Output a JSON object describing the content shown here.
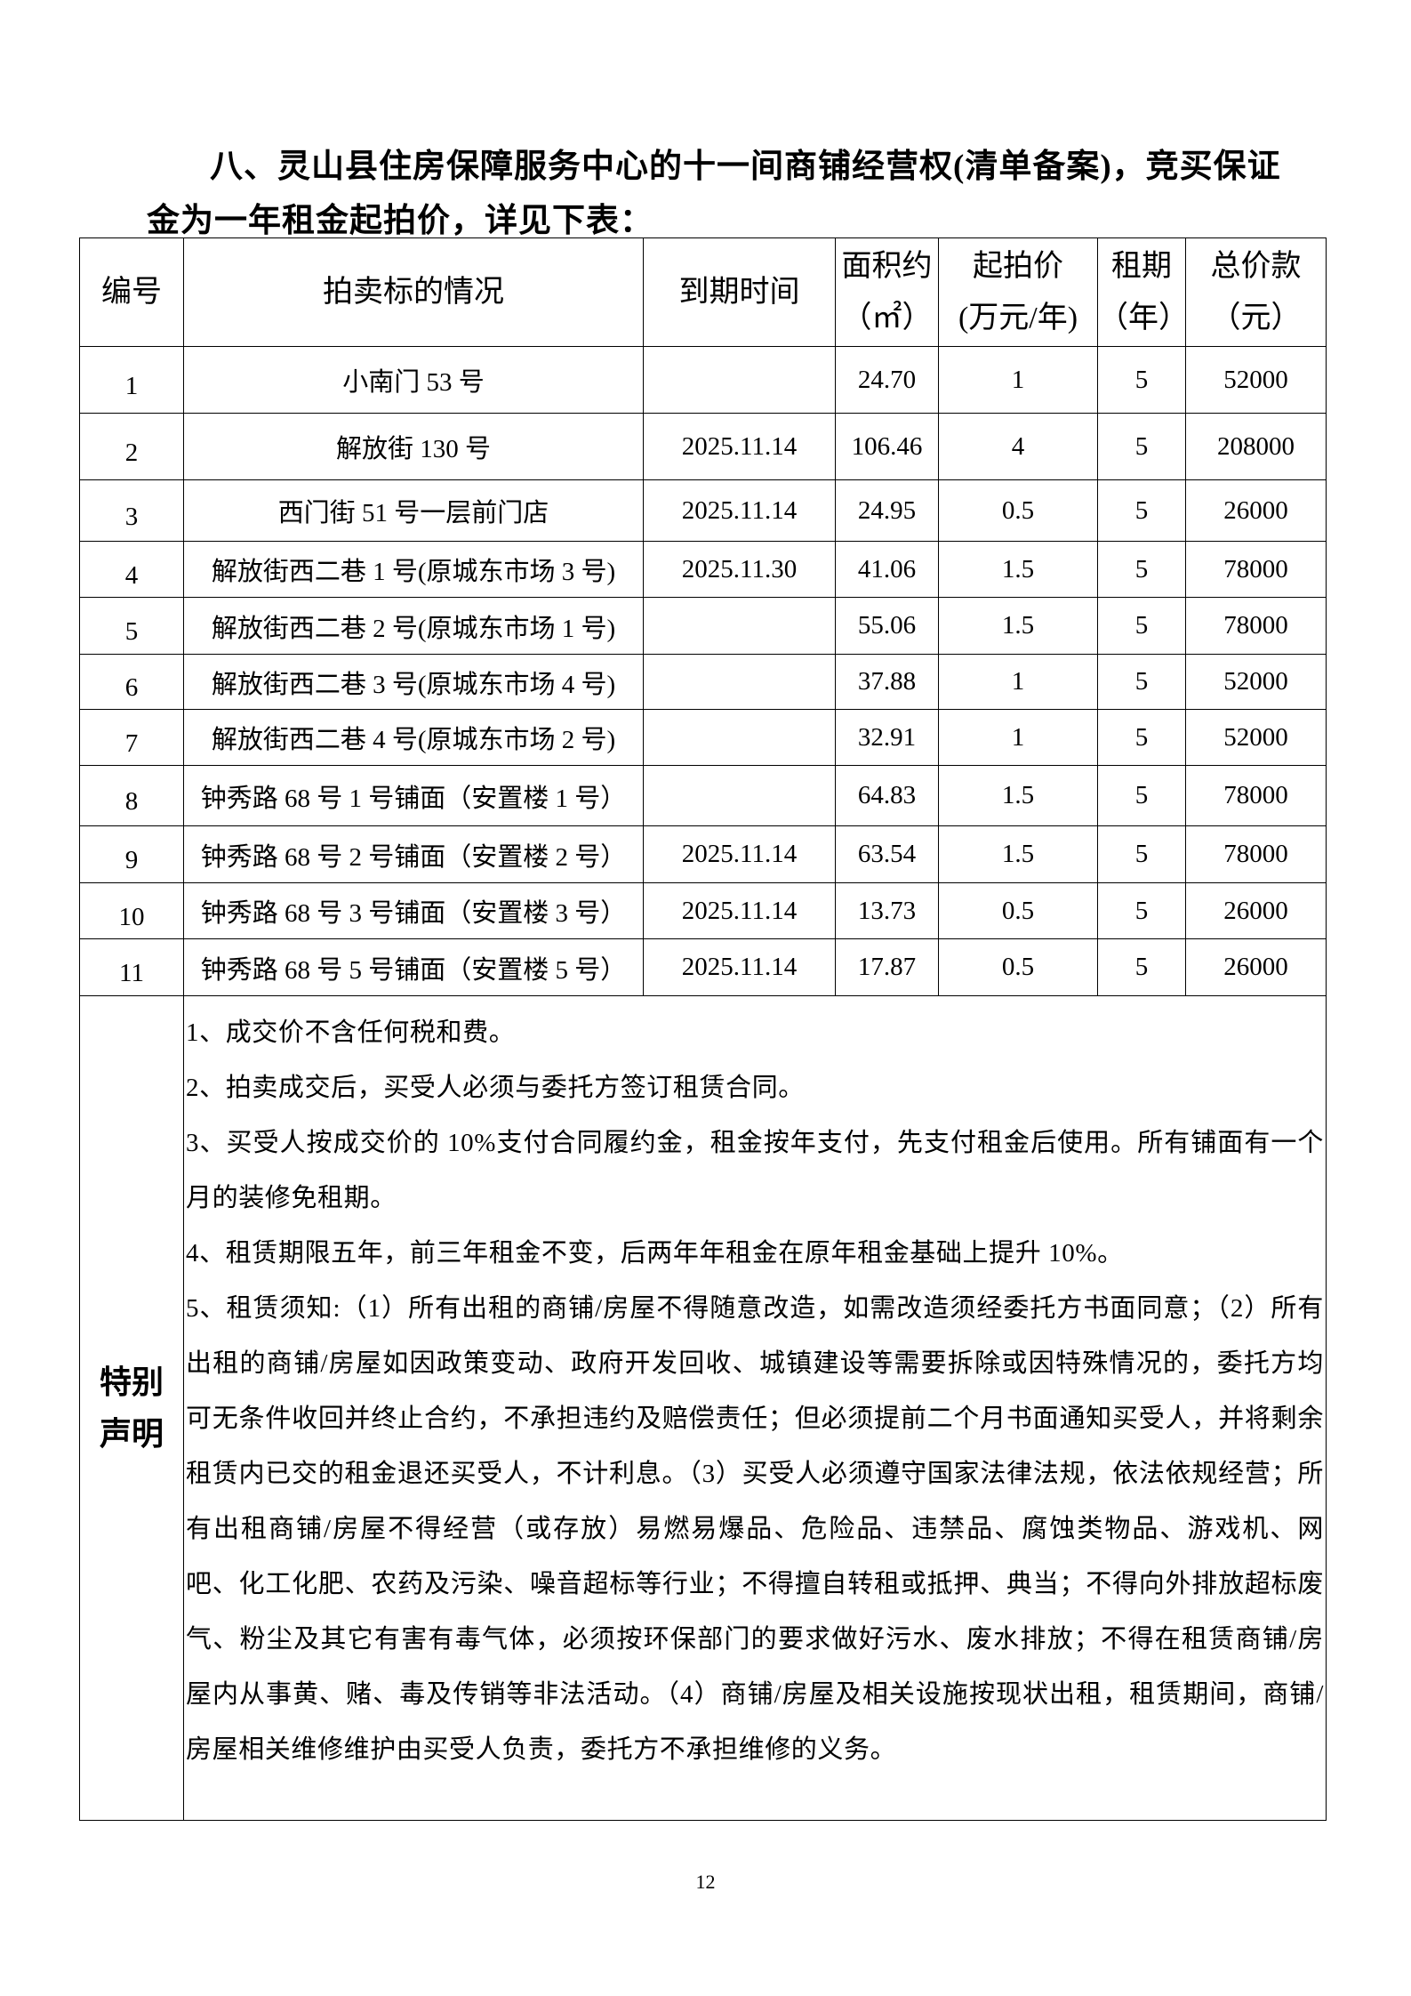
{
  "heading": {
    "line1": "八、灵山县住房保障服务中心的十一间商铺经营权(清单备案)，竞买保证",
    "line2": "金为一年租金起拍价，详见下表："
  },
  "table": {
    "headers": {
      "no": "编号",
      "subject": "拍卖标的情况",
      "expiry": "到期时间",
      "area_1": "面积约",
      "area_2": "（㎡）",
      "price_1": "起拍价",
      "price_2": "(万元/年)",
      "term_1": "租期",
      "term_2": "（年）",
      "total_1": "总价款",
      "total_2": "（元）"
    },
    "rows": [
      {
        "no": "1",
        "subject": "小南门 53 号",
        "expiry": "",
        "area": "24.70",
        "price": "1",
        "term": "5",
        "total": "52000"
      },
      {
        "no": "2",
        "subject": "解放街 130 号",
        "expiry": "2025.11.14",
        "area": "106.46",
        "price": "4",
        "term": "5",
        "total": "208000"
      },
      {
        "no": "3",
        "subject": "西门街 51 号一层前门店",
        "expiry": "2025.11.14",
        "area": "24.95",
        "price": "0.5",
        "term": "5",
        "total": "26000"
      },
      {
        "no": "4",
        "subject": "解放街西二巷 1 号(原城东市场 3 号)",
        "expiry": "2025.11.30",
        "area": "41.06",
        "price": "1.5",
        "term": "5",
        "total": "78000"
      },
      {
        "no": "5",
        "subject": "解放街西二巷 2 号(原城东市场 1 号)",
        "expiry": "",
        "area": "55.06",
        "price": "1.5",
        "term": "5",
        "total": "78000"
      },
      {
        "no": "6",
        "subject": "解放街西二巷 3 号(原城东市场 4 号)",
        "expiry": "",
        "area": "37.88",
        "price": "1",
        "term": "5",
        "total": "52000"
      },
      {
        "no": "7",
        "subject": "解放街西二巷 4 号(原城东市场 2 号)",
        "expiry": "",
        "area": "32.91",
        "price": "1",
        "term": "5",
        "total": "52000"
      },
      {
        "no": "8",
        "subject": "钟秀路 68 号 1 号铺面（安置楼 1 号）",
        "expiry": "",
        "area": "64.83",
        "price": "1.5",
        "term": "5",
        "total": "78000"
      },
      {
        "no": "9",
        "subject": "钟秀路 68 号 2 号铺面（安置楼 2 号）",
        "expiry": "2025.11.14",
        "area": "63.54",
        "price": "1.5",
        "term": "5",
        "total": "78000"
      },
      {
        "no": "10",
        "subject": "钟秀路 68 号 3 号铺面（安置楼 3 号）",
        "expiry": "2025.11.14",
        "area": "13.73",
        "price": "0.5",
        "term": "5",
        "total": "26000"
      },
      {
        "no": "11",
        "subject": "钟秀路 68 号 5 号铺面（安置楼 5 号）",
        "expiry": "2025.11.14",
        "area": "17.87",
        "price": "0.5",
        "term": "5",
        "total": "26000"
      }
    ],
    "special": {
      "label_1": "特别",
      "label_2": "声明",
      "items": [
        "1、成交价不含任何税和费。",
        "2、拍卖成交后，买受人必须与委托方签订租赁合同。",
        "3、买受人按成交价的 10%支付合同履约金，租金按年支付，先支付租金后使用。所有铺面有一个月的装修免租期。",
        "4、租赁期限五年，前三年租金不变，后两年年租金在原年租金基础上提升 10%。",
        "5、租赁须知:（1）所有出租的商铺/房屋不得随意改造，如需改造须经委托方书面同意；（2）所有出租的商铺/房屋如因政策变动、政府开发回收、城镇建设等需要拆除或因特殊情况的，委托方均可无条件收回并终止合约，不承担违约及赔偿责任；但必须提前二个月书面通知买受人，并将剩余租赁内已交的租金退还买受人，不计利息。（3）买受人必须遵守国家法律法规，依法依规经营；所有出租商铺/房屋不得经营（或存放）易燃易爆品、危险品、违禁品、腐蚀类物品、游戏机、网吧、化工化肥、农药及污染、噪音超标等行业；不得擅自转租或抵押、典当；不得向外排放超标废气、粉尘及其它有害有毒气体，必须按环保部门的要求做好污水、废水排放；不得在租赁商铺/房屋内从事黄、赌、毒及传销等非法活动。（4）商铺/房屋及相关设施按现状出租，租赁期间，商铺/房屋相关维修维护由买受人负责，委托方不承担维修的义务。"
      ]
    }
  },
  "footer": {
    "page_number": "12"
  }
}
